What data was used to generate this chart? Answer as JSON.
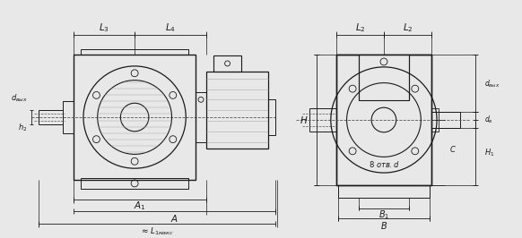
{
  "bg_color": "#e8e8e8",
  "line_color": "#1a1a1a",
  "text_color": "#1a1a1a",
  "fig_width": 5.82,
  "fig_height": 2.66,
  "dpi": 100
}
